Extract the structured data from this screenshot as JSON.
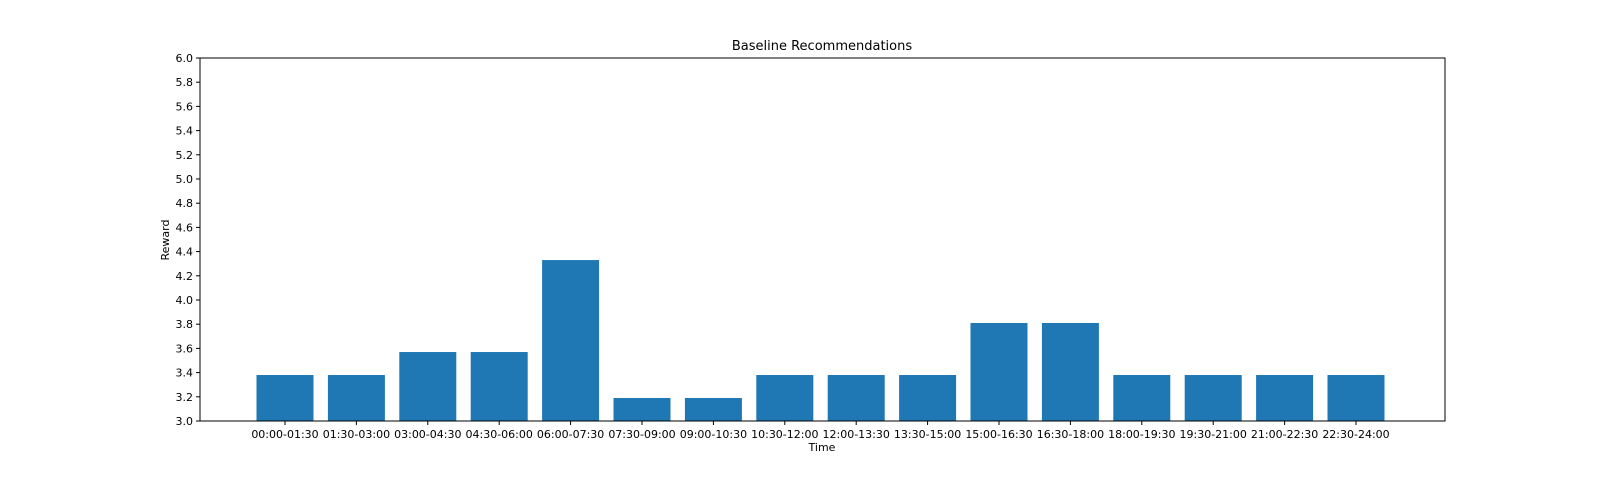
{
  "chart_data": {
    "type": "bar",
    "title": "Baseline Recommendations",
    "xlabel": "Time",
    "ylabel": "Reward",
    "ylim": [
      3.0,
      6.0
    ],
    "yticks": [
      "3.0",
      "3.2",
      "3.4",
      "3.6",
      "3.8",
      "4.0",
      "4.2",
      "4.4",
      "4.6",
      "4.8",
      "5.0",
      "5.2",
      "5.4",
      "5.6",
      "5.8",
      "6.0"
    ],
    "categories": [
      "00:00-01:30",
      "01:30-03:00",
      "03:00-04:30",
      "04:30-06:00",
      "06:00-07:30",
      "07:30-09:00",
      "09:00-10:30",
      "10:30-12:00",
      "12:00-13:30",
      "13:30-15:00",
      "15:00-16:30",
      "16:30-18:00",
      "18:00-19:30",
      "19:30-21:00",
      "21:00-22:30",
      "22:30-24:00"
    ],
    "values": [
      3.38,
      3.38,
      3.57,
      3.57,
      4.33,
      3.19,
      3.19,
      3.38,
      3.38,
      3.38,
      3.81,
      3.81,
      3.38,
      3.38,
      3.38,
      3.38
    ],
    "bar_color": "#1f77b4",
    "grid": false,
    "legend": "none"
  }
}
